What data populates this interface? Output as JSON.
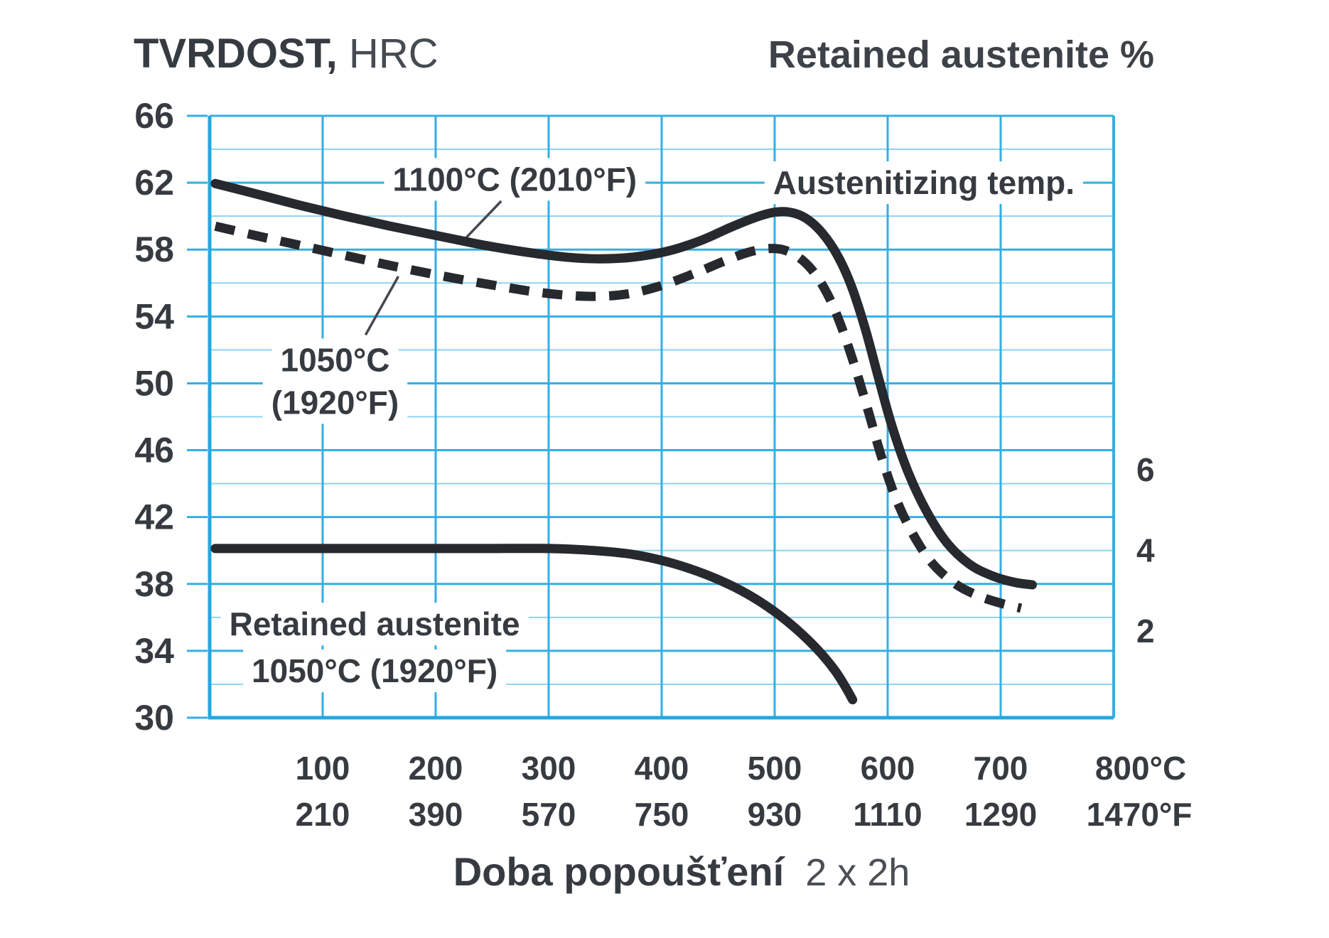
{
  "header": {
    "left_title_bold": "TVRDOST,",
    "left_title_rest": " HRC",
    "right_title": "Retained austenite %"
  },
  "footer": {
    "caption_bold": "Doba popoušťení",
    "caption_rest": "2 x 2h"
  },
  "chart_data": {
    "type": "line",
    "title_left": "TVRDOST, HRC",
    "title_right": "Retained austenite %",
    "xlabel": "Doba popoušťení 2 x 2h",
    "grid": true,
    "legend_position": "inline-annotations",
    "x_axis": {
      "min": 0,
      "max": 800,
      "unit_primary": "°C",
      "unit_secondary": "°F",
      "ticks": [
        100,
        200,
        300,
        400,
        500,
        600,
        700,
        800
      ],
      "tick_labels_c": [
        "100",
        "200",
        "300",
        "400",
        "500",
        "600",
        "700",
        "800°C"
      ],
      "tick_labels_f": [
        "210",
        "390",
        "570",
        "750",
        "930",
        "1110",
        "1290",
        "1470°F"
      ]
    },
    "y_left": {
      "label": "TVRDOST, HRC",
      "min": 30,
      "max": 66,
      "grid_step": 2,
      "label_step": 4,
      "tick_labels": [
        "66",
        "62",
        "58",
        "54",
        "50",
        "46",
        "42",
        "38",
        "34",
        "30"
      ]
    },
    "y_right": {
      "label": "Retained austenite %",
      "ticks": [
        6,
        4,
        2
      ],
      "tick_labels": [
        "6",
        "4",
        "2"
      ],
      "anchor_value": 4,
      "anchor_hrc": 40,
      "hrc_per_unit": 2.412
    },
    "series": [
      {
        "name": "hardness-1100C",
        "legend": "1100°C (2010°F)",
        "style": "solid",
        "axis": "left",
        "points": [
          [
            5,
            61.95
          ],
          [
            40,
            61.35
          ],
          [
            80,
            60.65
          ],
          [
            120,
            60.0
          ],
          [
            160,
            59.4
          ],
          [
            200,
            58.85
          ],
          [
            240,
            58.3
          ],
          [
            280,
            57.85
          ],
          [
            315,
            57.55
          ],
          [
            345,
            57.45
          ],
          [
            375,
            57.55
          ],
          [
            405,
            57.9
          ],
          [
            435,
            58.55
          ],
          [
            460,
            59.3
          ],
          [
            480,
            59.85
          ],
          [
            497,
            60.2
          ],
          [
            512,
            60.25
          ],
          [
            527,
            59.9
          ],
          [
            542,
            59.0
          ],
          [
            556,
            57.6
          ],
          [
            568,
            55.8
          ],
          [
            580,
            53.3
          ],
          [
            592,
            50.3
          ],
          [
            604,
            47.4
          ],
          [
            618,
            44.7
          ],
          [
            634,
            42.4
          ],
          [
            652,
            40.5
          ],
          [
            672,
            39.2
          ],
          [
            692,
            38.5
          ],
          [
            712,
            38.1
          ],
          [
            728,
            37.95
          ]
        ]
      },
      {
        "name": "hardness-1050C",
        "legend": "1050°C (1920°F)",
        "style": "dashed",
        "axis": "left",
        "points": [
          [
            5,
            59.4
          ],
          [
            40,
            58.85
          ],
          [
            80,
            58.25
          ],
          [
            120,
            57.65
          ],
          [
            160,
            57.05
          ],
          [
            200,
            56.5
          ],
          [
            240,
            56.0
          ],
          [
            280,
            55.55
          ],
          [
            310,
            55.3
          ],
          [
            340,
            55.2
          ],
          [
            370,
            55.35
          ],
          [
            400,
            55.85
          ],
          [
            430,
            56.6
          ],
          [
            455,
            57.3
          ],
          [
            475,
            57.8
          ],
          [
            492,
            58.05
          ],
          [
            507,
            58.0
          ],
          [
            521,
            57.55
          ],
          [
            534,
            56.7
          ],
          [
            547,
            55.3
          ],
          [
            559,
            53.4
          ],
          [
            571,
            51.0
          ],
          [
            583,
            48.3
          ],
          [
            595,
            45.5
          ],
          [
            608,
            43.0
          ],
          [
            623,
            40.9
          ],
          [
            640,
            39.2
          ],
          [
            660,
            38.0
          ],
          [
            680,
            37.3
          ],
          [
            700,
            36.85
          ],
          [
            718,
            36.55
          ]
        ]
      },
      {
        "name": "retained-austenite-1050C",
        "legend": "Retained austenite 1050°C (1920°F)",
        "style": "solid",
        "axis": "right",
        "points": [
          [
            5,
            4.05
          ],
          [
            80,
            4.05
          ],
          [
            160,
            4.05
          ],
          [
            240,
            4.05
          ],
          [
            300,
            4.05
          ],
          [
            340,
            4.0
          ],
          [
            375,
            3.9
          ],
          [
            405,
            3.72
          ],
          [
            432,
            3.48
          ],
          [
            458,
            3.18
          ],
          [
            482,
            2.82
          ],
          [
            504,
            2.4
          ],
          [
            524,
            1.93
          ],
          [
            541,
            1.45
          ],
          [
            554,
            1.0
          ],
          [
            563,
            0.6
          ],
          [
            569,
            0.3
          ]
        ]
      }
    ],
    "annotations": [
      {
        "id": "ann-1100",
        "lines": [
          "1100°C (2010°F)"
        ],
        "t": 270,
        "hrc": 62.2,
        "leader": {
          "from": [
            258,
            60.9
          ],
          "to": [
            224,
            58.5
          ]
        }
      },
      {
        "id": "ann-austenitizing",
        "lines": [
          "Austenitizing temp."
        ],
        "t": 632,
        "hrc": 62.0
      },
      {
        "id": "ann-1050",
        "lines": [
          "1050°C",
          "(1920°F)"
        ],
        "t": 111,
        "hrc": 51.4,
        "line_gap_hrc": 2.55,
        "leader": {
          "from": [
            138,
            52.9
          ],
          "to": [
            167,
            56.4
          ]
        }
      },
      {
        "id": "ann-retained",
        "lines": [
          "Retained austenite",
          "1050°C (1920°F)"
        ],
        "t": 146,
        "hrc": 35.6,
        "line_gap_hrc": 2.8
      }
    ],
    "colors": {
      "grid_major": "#35aee3",
      "grid_minor": "#8fd3f1",
      "axis": "#24a8e0",
      "curve": "#26292e",
      "text": "#363b41",
      "text_soft": "#4a4f55",
      "leader": "#46494f",
      "background": "#ffffff"
    }
  }
}
